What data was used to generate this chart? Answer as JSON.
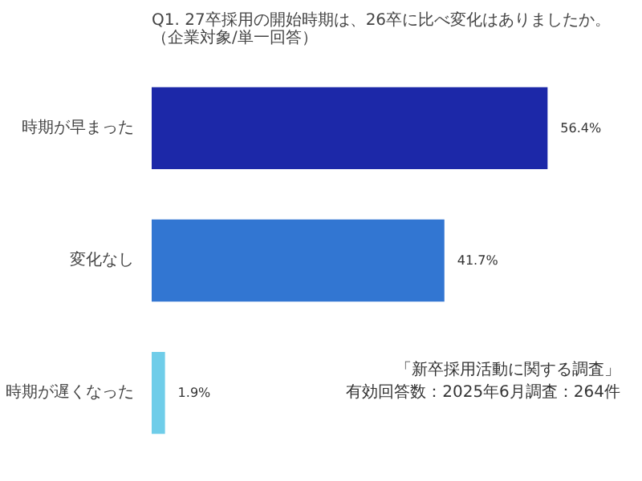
{
  "chart_data": {
    "type": "bar",
    "orientation": "horizontal",
    "title": "Q1. 27卒採用の開始時期は、26卒に比べ変化はありましたか。（企業対象/単一回答）",
    "categories": [
      "時期が早まった",
      "変化なし",
      "時期が遅くなった"
    ],
    "values": [
      56.4,
      41.7,
      1.9
    ],
    "colors": [
      "#1c28a8",
      "#3276d2",
      "#6fcde9"
    ],
    "value_labels": [
      "56.4%",
      "41.7%",
      "1.9%"
    ],
    "annotations": [
      "「新卒採用活動に関する調査」",
      "有効回答数：2025年6月調査：264件"
    ],
    "grid": false
  }
}
